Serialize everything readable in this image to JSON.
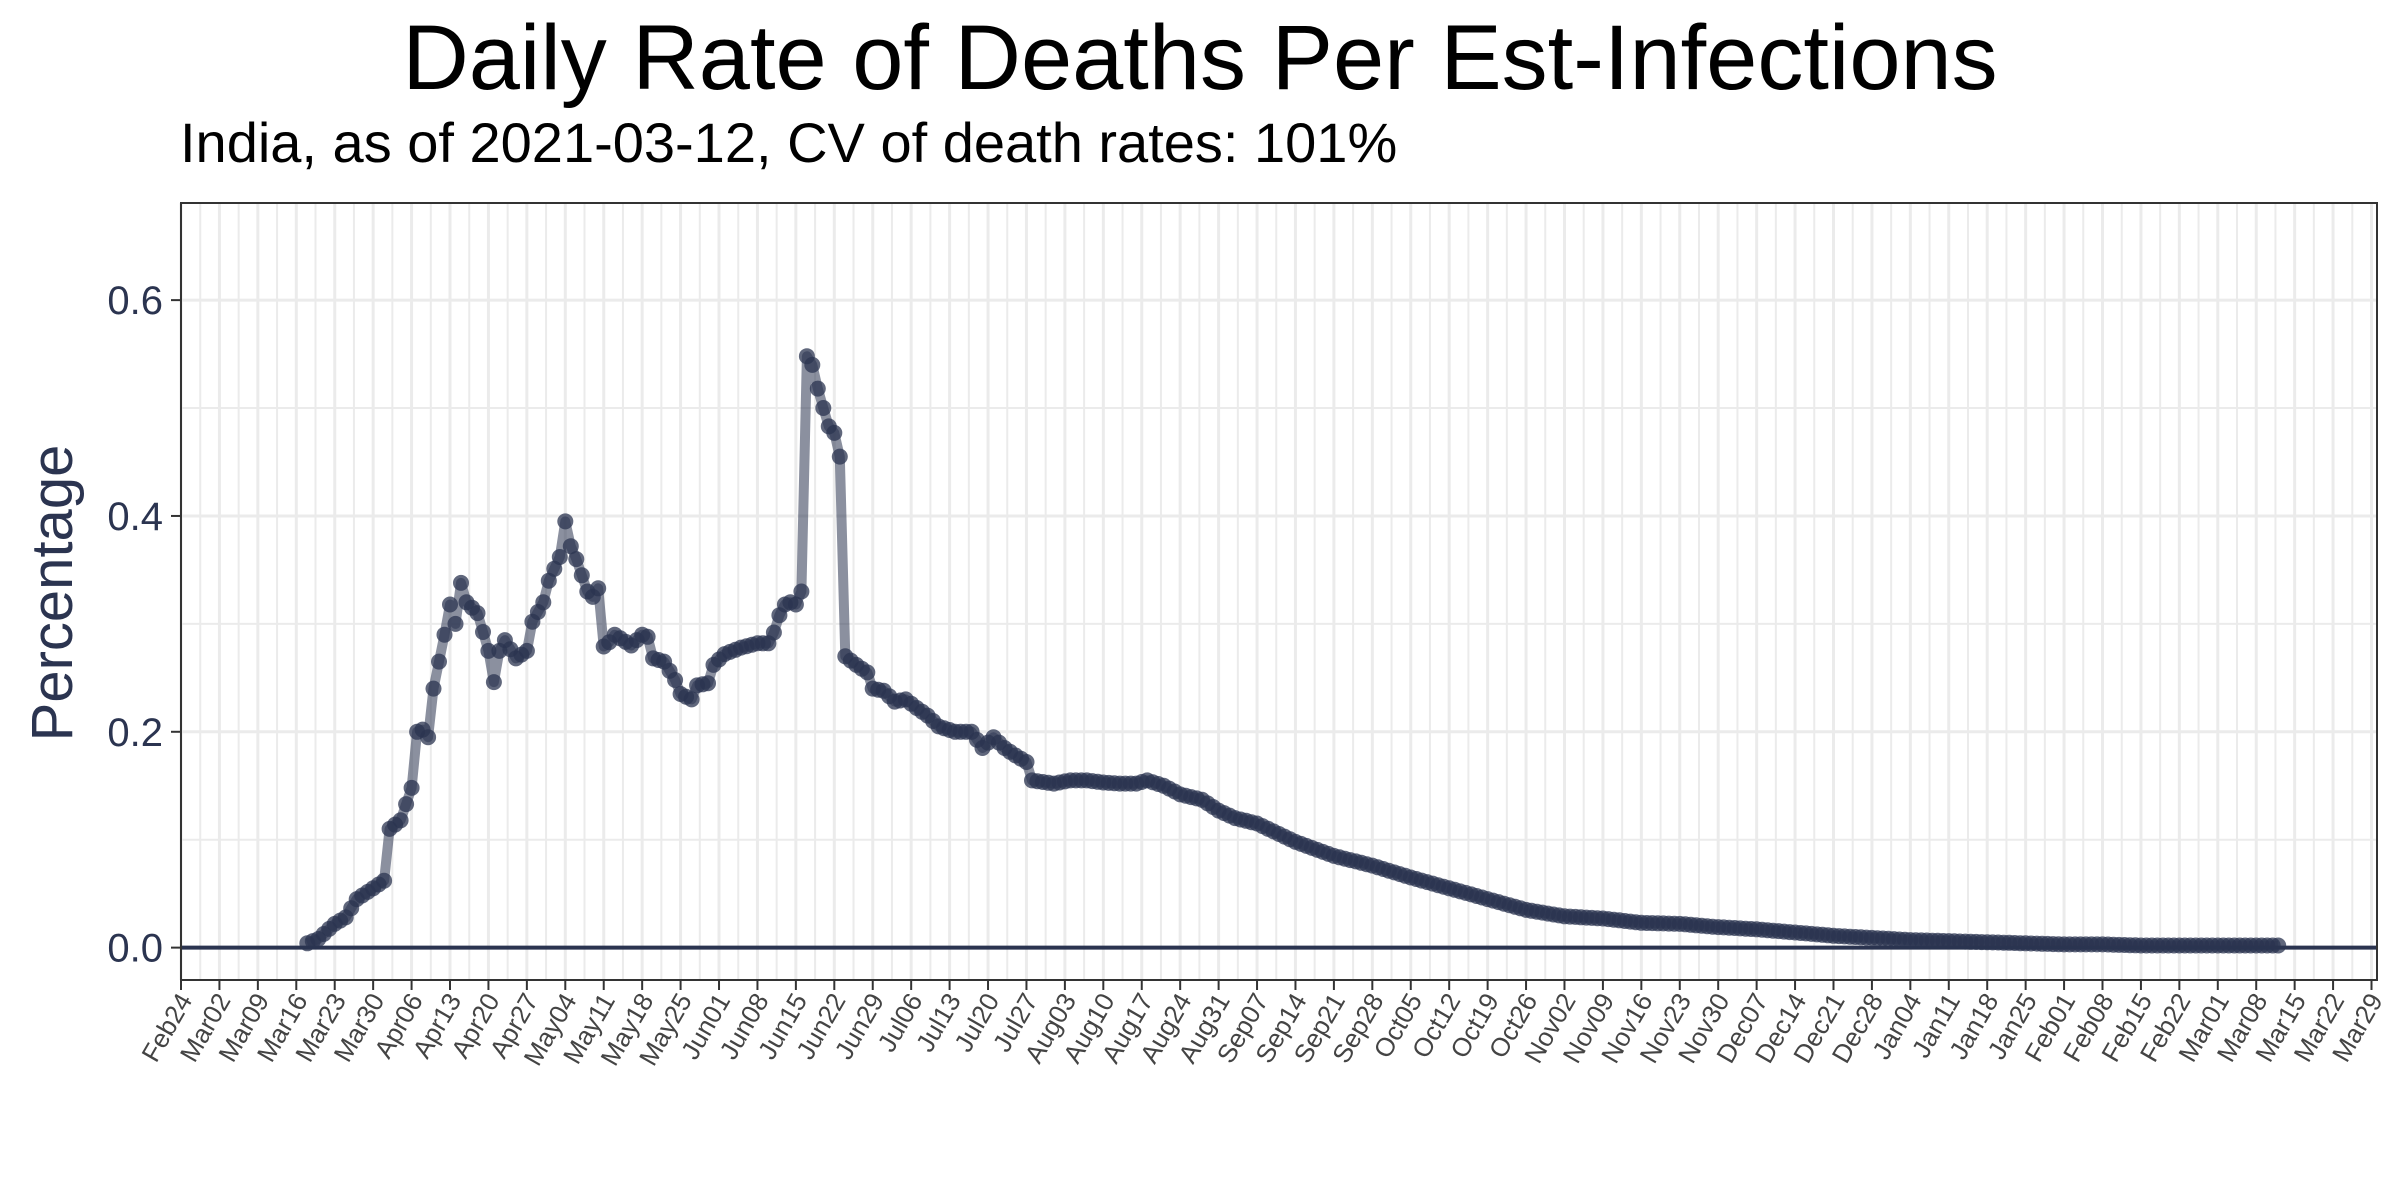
{
  "colors": {
    "series": "#2b3450",
    "grid": "#ebebeb",
    "zero_line": "#2b3450",
    "axis_text": "#2b3450",
    "panel_border": "#333333"
  },
  "chart_data": {
    "type": "line",
    "title": "Daily Rate of Deaths Per Est-Infections",
    "subtitle": "India, as of 2021-03-12, CV of death rates: 101%",
    "xlabel": "",
    "ylabel": "Percentage",
    "ylim": [
      -0.03,
      0.69
    ],
    "xlim": [
      "2020-02-24",
      "2021-03-30"
    ],
    "y_ticks": [
      0.0,
      0.2,
      0.4,
      0.6
    ],
    "y_tick_labels": [
      "0.0",
      "0.2",
      "0.4",
      "0.6"
    ],
    "x_tick_dates": [
      "2020-02-24",
      "2020-03-02",
      "2020-03-09",
      "2020-03-16",
      "2020-03-23",
      "2020-03-30",
      "2020-04-06",
      "2020-04-13",
      "2020-04-20",
      "2020-04-27",
      "2020-05-04",
      "2020-05-11",
      "2020-05-18",
      "2020-05-25",
      "2020-06-01",
      "2020-06-08",
      "2020-06-15",
      "2020-06-22",
      "2020-06-29",
      "2020-07-06",
      "2020-07-13",
      "2020-07-20",
      "2020-07-27",
      "2020-08-03",
      "2020-08-10",
      "2020-08-17",
      "2020-08-24",
      "2020-08-31",
      "2020-09-07",
      "2020-09-14",
      "2020-09-21",
      "2020-09-28",
      "2020-10-05",
      "2020-10-12",
      "2020-10-19",
      "2020-10-26",
      "2020-11-02",
      "2020-11-09",
      "2020-11-16",
      "2020-11-23",
      "2020-11-30",
      "2020-12-07",
      "2020-12-14",
      "2020-12-21",
      "2020-12-28",
      "2021-01-04",
      "2021-01-11",
      "2021-01-18",
      "2021-01-25",
      "2021-02-01",
      "2021-02-08",
      "2021-02-15",
      "2021-02-22",
      "2021-03-01",
      "2021-03-08",
      "2021-03-15",
      "2021-03-22",
      "2021-03-29"
    ],
    "x_tick_labels": [
      "Feb24",
      "Mar02",
      "Mar09",
      "Mar16",
      "Mar23",
      "Mar30",
      "Apr06",
      "Apr13",
      "Apr20",
      "Apr27",
      "May04",
      "May11",
      "May18",
      "May25",
      "Jun01",
      "Jun08",
      "Jun15",
      "Jun22",
      "Jun29",
      "Jul06",
      "Jul13",
      "Jul20",
      "Jul27",
      "Aug03",
      "Aug10",
      "Aug17",
      "Aug24",
      "Aug31",
      "Sep07",
      "Sep14",
      "Sep21",
      "Sep28",
      "Oct05",
      "Oct12",
      "Oct19",
      "Oct26",
      "Nov02",
      "Nov09",
      "Nov16",
      "Nov23",
      "Nov30",
      "Dec07",
      "Dec14",
      "Dec21",
      "Dec28",
      "Jan04",
      "Jan11",
      "Jan18",
      "Jan25",
      "Feb01",
      "Feb08",
      "Feb15",
      "Feb22",
      "Mar01",
      "Mar08",
      "Mar15",
      "Mar22",
      "Mar29"
    ],
    "grid": true,
    "legend": "none",
    "series": [
      {
        "anchors": [
          [
            "2020-03-18",
            0.004
          ],
          [
            "2020-03-20",
            0.008
          ],
          [
            "2020-03-23",
            0.022
          ],
          [
            "2020-03-25",
            0.028
          ],
          [
            "2020-03-27",
            0.045
          ],
          [
            "2020-03-30",
            0.055
          ],
          [
            "2020-04-01",
            0.062
          ],
          [
            "2020-04-02",
            0.11
          ],
          [
            "2020-04-04",
            0.118
          ],
          [
            "2020-04-06",
            0.148
          ],
          [
            "2020-04-07",
            0.2
          ],
          [
            "2020-04-08",
            0.202
          ],
          [
            "2020-04-09",
            0.195
          ],
          [
            "2020-04-10",
            0.24
          ],
          [
            "2020-04-11",
            0.265
          ],
          [
            "2020-04-12",
            0.29
          ],
          [
            "2020-04-13",
            0.318
          ],
          [
            "2020-04-14",
            0.3
          ],
          [
            "2020-04-15",
            0.338
          ],
          [
            "2020-04-16",
            0.32
          ],
          [
            "2020-04-18",
            0.31
          ],
          [
            "2020-04-20",
            0.275
          ],
          [
            "2020-04-21",
            0.246
          ],
          [
            "2020-04-22",
            0.275
          ],
          [
            "2020-04-23",
            0.285
          ],
          [
            "2020-04-25",
            0.268
          ],
          [
            "2020-04-27",
            0.275
          ],
          [
            "2020-04-28",
            0.302
          ],
          [
            "2020-04-30",
            0.32
          ],
          [
            "2020-05-01",
            0.34
          ],
          [
            "2020-05-03",
            0.362
          ],
          [
            "2020-05-04",
            0.395
          ],
          [
            "2020-05-05",
            0.372
          ],
          [
            "2020-05-06",
            0.36
          ],
          [
            "2020-05-07",
            0.345
          ],
          [
            "2020-05-08",
            0.33
          ],
          [
            "2020-05-09",
            0.325
          ],
          [
            "2020-05-10",
            0.333
          ],
          [
            "2020-05-11",
            0.279
          ],
          [
            "2020-05-12",
            0.283
          ],
          [
            "2020-05-13",
            0.29
          ],
          [
            "2020-05-16",
            0.28
          ],
          [
            "2020-05-18",
            0.29
          ],
          [
            "2020-05-19",
            0.288
          ],
          [
            "2020-05-20",
            0.268
          ],
          [
            "2020-05-22",
            0.265
          ],
          [
            "2020-05-24",
            0.248
          ],
          [
            "2020-05-25",
            0.235
          ],
          [
            "2020-05-27",
            0.23
          ],
          [
            "2020-05-28",
            0.243
          ],
          [
            "2020-05-30",
            0.245
          ],
          [
            "2020-05-31",
            0.262
          ],
          [
            "2020-06-02",
            0.272
          ],
          [
            "2020-06-05",
            0.278
          ],
          [
            "2020-06-08",
            0.282
          ],
          [
            "2020-06-10",
            0.282
          ],
          [
            "2020-06-11",
            0.292
          ],
          [
            "2020-06-12",
            0.308
          ],
          [
            "2020-06-13",
            0.318
          ],
          [
            "2020-06-14",
            0.32
          ],
          [
            "2020-06-15",
            0.318
          ],
          [
            "2020-06-16",
            0.33
          ],
          [
            "2020-06-17",
            0.548
          ],
          [
            "2020-06-18",
            0.54
          ],
          [
            "2020-06-19",
            0.518
          ],
          [
            "2020-06-20",
            0.5
          ],
          [
            "2020-06-21",
            0.483
          ],
          [
            "2020-06-22",
            0.477
          ],
          [
            "2020-06-23",
            0.455
          ],
          [
            "2020-06-24",
            0.27
          ],
          [
            "2020-06-26",
            0.262
          ],
          [
            "2020-06-28",
            0.255
          ],
          [
            "2020-06-29",
            0.24
          ],
          [
            "2020-07-01",
            0.238
          ],
          [
            "2020-07-03",
            0.228
          ],
          [
            "2020-07-05",
            0.23
          ],
          [
            "2020-07-07",
            0.222
          ],
          [
            "2020-07-09",
            0.215
          ],
          [
            "2020-07-11",
            0.205
          ],
          [
            "2020-07-14",
            0.2
          ],
          [
            "2020-07-17",
            0.2
          ],
          [
            "2020-07-19",
            0.185
          ],
          [
            "2020-07-21",
            0.195
          ],
          [
            "2020-07-23",
            0.185
          ],
          [
            "2020-07-25",
            0.178
          ],
          [
            "2020-07-27",
            0.172
          ],
          [
            "2020-07-28",
            0.155
          ],
          [
            "2020-08-01",
            0.152
          ],
          [
            "2020-08-04",
            0.155
          ],
          [
            "2020-08-07",
            0.155
          ],
          [
            "2020-08-10",
            0.153
          ],
          [
            "2020-08-13",
            0.152
          ],
          [
            "2020-08-16",
            0.152
          ],
          [
            "2020-08-18",
            0.155
          ],
          [
            "2020-08-21",
            0.15
          ],
          [
            "2020-08-24",
            0.142
          ],
          [
            "2020-08-28",
            0.137
          ],
          [
            "2020-08-31",
            0.127
          ],
          [
            "2020-09-03",
            0.12
          ],
          [
            "2020-09-07",
            0.115
          ],
          [
            "2020-09-14",
            0.098
          ],
          [
            "2020-09-21",
            0.085
          ],
          [
            "2020-09-28",
            0.076
          ],
          [
            "2020-10-05",
            0.065
          ],
          [
            "2020-10-12",
            0.055
          ],
          [
            "2020-10-19",
            0.045
          ],
          [
            "2020-10-26",
            0.035
          ],
          [
            "2020-11-02",
            0.029
          ],
          [
            "2020-11-09",
            0.027
          ],
          [
            "2020-11-16",
            0.023
          ],
          [
            "2020-11-23",
            0.022
          ],
          [
            "2020-11-30",
            0.019
          ],
          [
            "2020-12-07",
            0.017
          ],
          [
            "2020-12-14",
            0.014
          ],
          [
            "2020-12-21",
            0.011
          ],
          [
            "2020-12-28",
            0.009
          ],
          [
            "2021-01-04",
            0.007
          ],
          [
            "2021-01-11",
            0.006
          ],
          [
            "2021-01-18",
            0.005
          ],
          [
            "2021-01-25",
            0.004
          ],
          [
            "2021-02-01",
            0.003
          ],
          [
            "2021-02-08",
            0.003
          ],
          [
            "2021-02-15",
            0.002
          ],
          [
            "2021-02-22",
            0.002
          ],
          [
            "2021-03-01",
            0.002
          ],
          [
            "2021-03-08",
            0.002
          ],
          [
            "2021-03-12",
            0.002
          ]
        ]
      }
    ]
  }
}
